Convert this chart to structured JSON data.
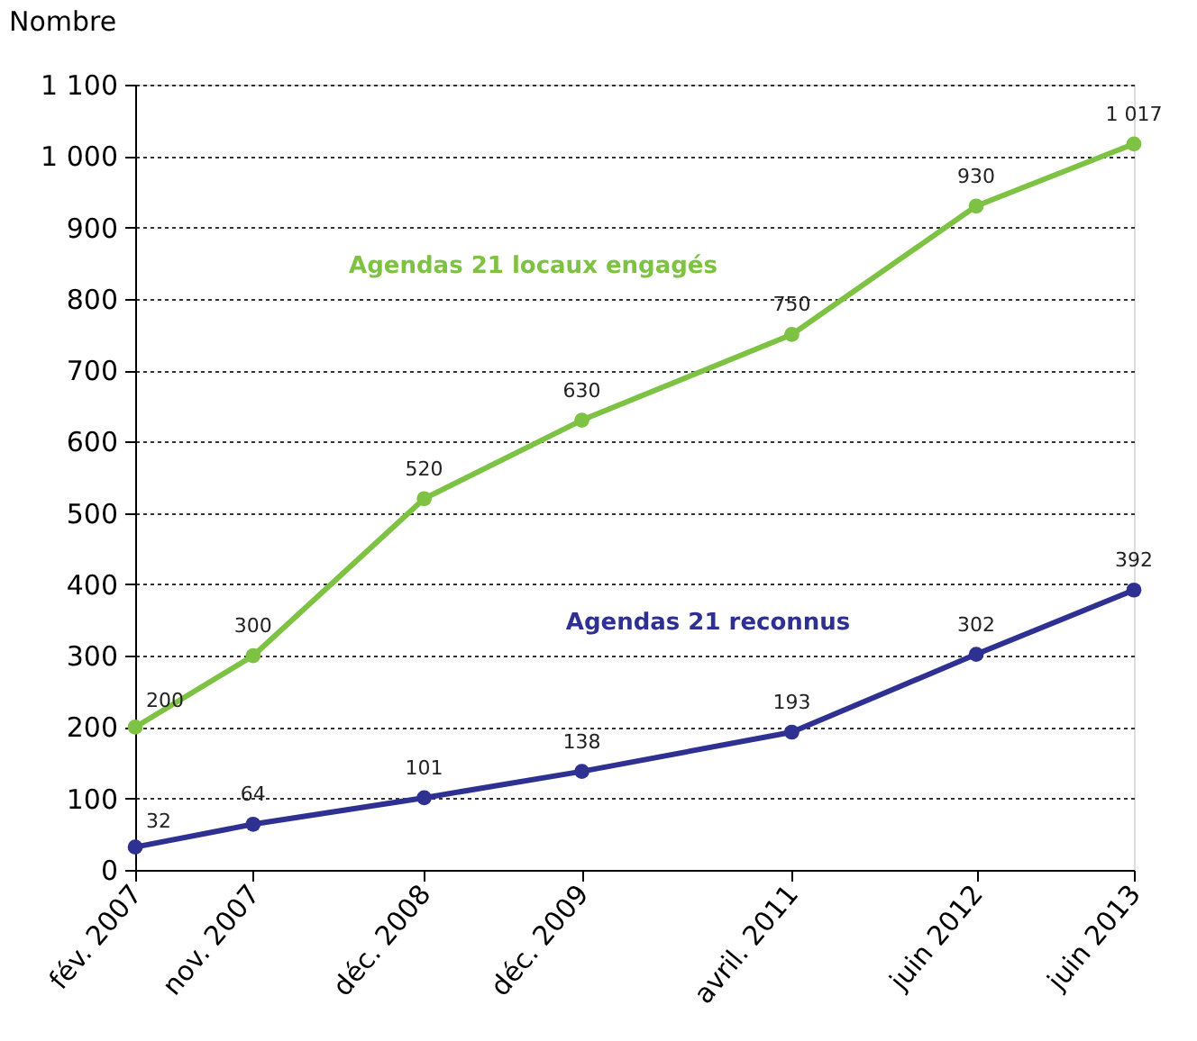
{
  "chart_data": {
    "type": "line",
    "ylabel": "Nombre",
    "x": [
      "2007-02",
      "2007-11",
      "2008-12",
      "2009-12",
      "2011-04",
      "2012-06",
      "2013-06"
    ],
    "xlim": [
      "2007-02",
      "2013-06"
    ],
    "xticks": [
      {
        "value": "2007-02",
        "label": "fév. 2007"
      },
      {
        "value": "2007-11",
        "label": "nov. 2007"
      },
      {
        "value": "2008-12",
        "label": "déc. 2008"
      },
      {
        "value": "2009-12",
        "label": "déc. 2009"
      },
      {
        "value": "2011-04",
        "label": "avril. 2011"
      },
      {
        "value": "2012-06",
        "label": "juin 2012"
      },
      {
        "value": "2013-06",
        "label": "juin 2013"
      }
    ],
    "ylim": [
      0,
      1100
    ],
    "yticks": [
      0,
      100,
      200,
      300,
      400,
      500,
      600,
      700,
      800,
      900,
      {
        "value": 1000,
        "label": "1 000"
      },
      {
        "value": 1100,
        "label": "1 100"
      }
    ],
    "series": [
      {
        "name": "Agendas 21 locaux engagés",
        "color": "#7dc242",
        "values": [
          200,
          300,
          520,
          630,
          750,
          930,
          1017
        ],
        "value_labels": [
          "200",
          "300",
          "520",
          "630",
          "750",
          "930",
          "1 017"
        ]
      },
      {
        "name": "Agendas 21 reconnus",
        "color": "#2e3192",
        "values": [
          32,
          64,
          101,
          138,
          193,
          302,
          392
        ],
        "value_labels": [
          "32",
          "64",
          "101",
          "138",
          "193",
          "302",
          "392"
        ]
      }
    ],
    "grid": "y",
    "marker": "circle",
    "line_style": "solid"
  }
}
